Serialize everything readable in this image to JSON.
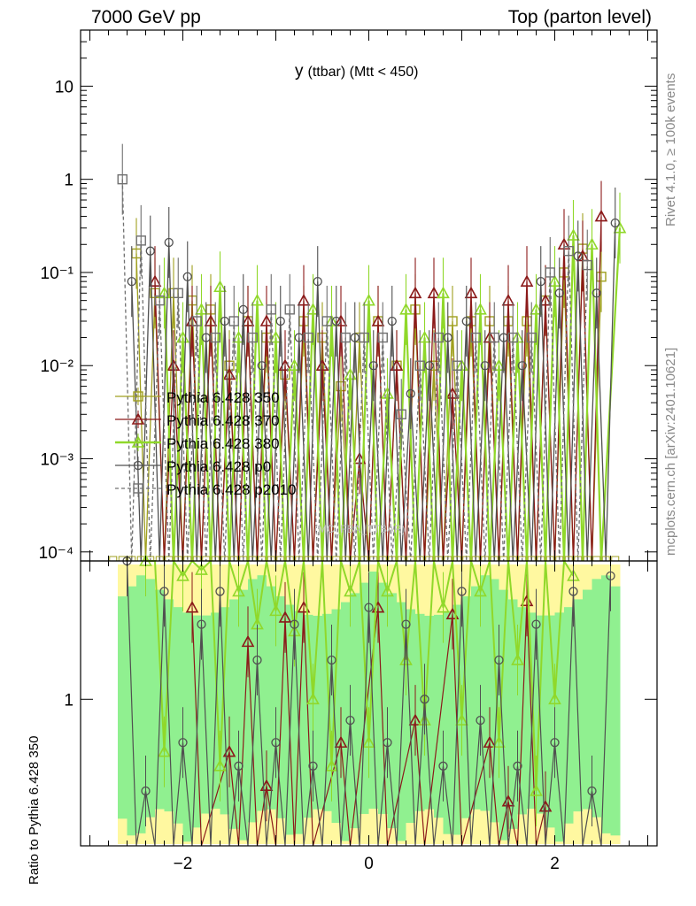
{
  "header": {
    "left": "7000 GeV pp",
    "right": "Top (parton level)"
  },
  "side": {
    "rivet": "Rivet 4.1.0, ≥ 100k events",
    "mcplots": "mcplots.cern.ch [arXiv:2401.10621]"
  },
  "watermark": "(MC_FBA_TTBAR)",
  "chart_data": {
    "type": "line",
    "title": "y (ttbar) (Mtt < 450)",
    "title_main": "y",
    "title_rest": "(ttbar) (Mtt < 450)",
    "xlabel": "",
    "ylabel": "",
    "ratio_ylabel": "Ratio to Pythia 6.428 350",
    "xlim": [
      -3.1,
      3.1
    ],
    "ylim": [
      8e-05,
      40
    ],
    "yscale": "log",
    "ratio_ylim": [
      0.7,
      1.4
    ],
    "x_ticks": [
      "−2",
      "0",
      "2"
    ],
    "x_tick_values": [
      -2,
      0,
      2
    ],
    "y_ticks": [
      "10⁻⁴",
      "10⁻³",
      "10⁻²",
      "10⁻¹",
      "1",
      "10"
    ],
    "y_tick_values": [
      0.0001,
      0.001,
      0.01,
      0.1,
      1,
      10
    ],
    "ratio_ticks": [
      "1"
    ],
    "ratio_tick_values": [
      1
    ],
    "legend_position": "left, middle",
    "colors": {
      "p350": "#a0a020",
      "p370": "#8b1a1a",
      "p380": "#90d82a",
      "p0": "#505050",
      "p2010": "#707070",
      "band_green": "#90f090",
      "band_yellow": "#fff8a0"
    },
    "series": [
      {
        "name": "Pythia 6.428 350",
        "marker": "square-open",
        "color": "#a0a020",
        "x": [
          -2.5,
          -2.3,
          -2.1,
          -1.9,
          -1.7,
          -1.5,
          -1.3,
          -1.1,
          -0.9,
          -0.7,
          -0.5,
          -0.3,
          -0.1,
          0.1,
          0.3,
          0.5,
          0.7,
          0.9,
          1.1,
          1.3,
          1.5,
          1.7,
          1.9,
          2.1,
          2.3,
          2.5
        ],
        "y": [
          0.16,
          0.06,
          0.06,
          0.05,
          0.04,
          0.01,
          0.03,
          0.02,
          0.008,
          0.03,
          0.02,
          0.006,
          0.02,
          0.03,
          0.01,
          0.04,
          0.01,
          0.03,
          0.03,
          0.03,
          0.03,
          0.03,
          0.05,
          0.1,
          0.18,
          0.09
        ]
      },
      {
        "name": "Pythia 6.428 370",
        "marker": "triangle-open",
        "color": "#8b1a1a",
        "x": [
          -2.3,
          -2.1,
          -1.9,
          -1.7,
          -1.5,
          -1.3,
          -1.1,
          -0.9,
          -0.7,
          -0.5,
          -0.3,
          -0.1,
          0.1,
          0.3,
          0.5,
          0.7,
          0.9,
          1.1,
          1.3,
          1.5,
          1.7,
          1.9,
          2.1,
          2.3,
          2.5
        ],
        "y": [
          0.08,
          0.01,
          0.03,
          0.03,
          0.008,
          0.03,
          0.03,
          0.01,
          0.05,
          0.01,
          0.03,
          0.001,
          0.03,
          0.01,
          0.06,
          0.06,
          0.005,
          0.06,
          0.02,
          0.05,
          0.08,
          0.05,
          0.2,
          0.15,
          0.4
        ]
      },
      {
        "name": "Pythia 6.428 380",
        "marker": "triangle-open",
        "color": "#90d82a",
        "x": [
          -2.2,
          -2.0,
          -1.8,
          -1.6,
          -1.4,
          -1.2,
          -1.0,
          -0.8,
          -0.6,
          -0.4,
          -0.2,
          0.0,
          0.2,
          0.4,
          0.6,
          0.8,
          1.0,
          1.2,
          1.4,
          1.6,
          1.8,
          2.0,
          2.2,
          2.4,
          2.7
        ],
        "y": [
          0.06,
          0.02,
          0.04,
          0.07,
          0.02,
          0.05,
          0.02,
          0.01,
          0.04,
          0.03,
          0.008,
          0.05,
          0.005,
          0.04,
          0.02,
          0.06,
          0.01,
          0.04,
          0.01,
          0.02,
          0.04,
          0.08,
          0.25,
          0.2,
          0.3
        ]
      },
      {
        "name": "Pythia 6.428 p0",
        "marker": "circle-open",
        "color": "#505050",
        "x": [
          -2.55,
          -2.35,
          -2.15,
          -1.95,
          -1.75,
          -1.55,
          -1.35,
          -1.15,
          -0.95,
          -0.75,
          -0.55,
          -0.35,
          -0.15,
          0.05,
          0.25,
          0.45,
          0.65,
          0.85,
          1.05,
          1.25,
          1.45,
          1.65,
          1.85,
          2.05,
          2.25,
          2.45,
          2.65
        ],
        "y": [
          0.08,
          0.17,
          0.21,
          0.09,
          0.02,
          0.03,
          0.04,
          0.01,
          0.03,
          0.02,
          0.08,
          0.03,
          0.02,
          0.01,
          0.03,
          0.005,
          0.01,
          0.02,
          0.03,
          0.01,
          0.02,
          0.01,
          0.08,
          0.06,
          0.15,
          0.06,
          0.34
        ]
      },
      {
        "name": "Pythia 6.428 p2010",
        "marker": "square-open-dashed",
        "color": "#707070",
        "x": [
          -2.65,
          -2.45,
          -2.25,
          -2.05,
          -1.85,
          -1.65,
          -1.45,
          -1.25,
          -1.05,
          -0.85,
          -0.65,
          -0.45,
          -0.25,
          -0.05,
          0.15,
          0.35,
          0.55,
          0.75,
          0.95,
          1.15,
          1.35,
          1.55,
          1.75,
          1.95,
          2.15,
          2.35
        ],
        "y": [
          1.0,
          0.22,
          0.05,
          0.06,
          0.03,
          0.02,
          0.03,
          0.02,
          0.04,
          0.04,
          0.02,
          0.03,
          0.02,
          0.02,
          0.02,
          0.003,
          0.01,
          0.02,
          0.01,
          0.02,
          0.02,
          0.02,
          0.02,
          0.1,
          0.17,
          0.12
        ]
      }
    ],
    "ratio_series": [
      {
        "name": "Pythia 6.428 370",
        "x": [
          -1.9,
          -1.5,
          -1.3,
          -1.1,
          -0.9,
          -0.7,
          -0.3,
          0.1,
          0.5,
          0.9,
          1.3,
          1.5,
          1.7,
          1.9
        ],
        "y": [
          1.25,
          0.88,
          1.15,
          0.81,
          1.22,
          1.25,
          0.9,
          1.25,
          0.95,
          1.23,
          0.9,
          0.78,
          1.27,
          0.77
        ]
      },
      {
        "name": "Pythia 6.428 380",
        "x": [
          -2.4,
          -2.2,
          -2.0,
          -1.8,
          -1.6,
          -1.4,
          -1.2,
          -1.0,
          -0.8,
          -0.6,
          -0.4,
          -0.2,
          0.0,
          0.2,
          0.4,
          0.6,
          0.8,
          1.0,
          1.2,
          1.4,
          1.6,
          1.8,
          2.0,
          2.2
        ],
        "y": [
          1.4,
          0.88,
          1.35,
          1.37,
          0.85,
          1.3,
          1.2,
          1.24,
          1.18,
          1.0,
          0.85,
          1.3,
          0.9,
          1.3,
          1.1,
          0.95,
          1.25,
          0.95,
          1.3,
          0.9,
          1.1,
          0.8,
          1.0,
          1.35
        ]
      },
      {
        "name": "Pythia 6.428 p0",
        "x": [
          -2.6,
          -2.4,
          -2.2,
          -2.0,
          -1.8,
          -1.6,
          -1.4,
          -1.2,
          -1.0,
          -0.8,
          -0.6,
          -0.4,
          -0.2,
          0.0,
          0.2,
          0.4,
          0.6,
          0.8,
          1.0,
          1.2,
          1.4,
          1.6,
          1.8,
          2.0,
          2.2,
          2.4,
          2.6
        ],
        "y": [
          1.4,
          0.8,
          1.3,
          0.9,
          1.2,
          1.3,
          0.85,
          1.1,
          0.9,
          1.2,
          0.85,
          1.1,
          0.95,
          1.25,
          0.9,
          1.2,
          1.0,
          0.85,
          1.3,
          0.95,
          1.1,
          0.85,
          1.2,
          0.9,
          1.3,
          0.8,
          1.35
        ]
      }
    ]
  }
}
